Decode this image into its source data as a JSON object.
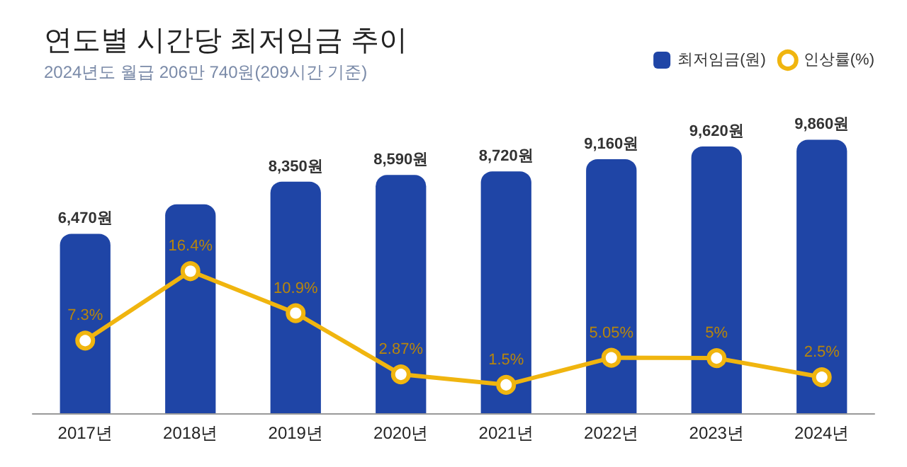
{
  "chart_data": {
    "type": "bar",
    "title": "연도별 시간당 최저임금 추이",
    "subtitle": "2024년도 월급 206만 740원(209시간 기준)",
    "categories": [
      "2017년",
      "2018년",
      "2019년",
      "2020년",
      "2021년",
      "2022년",
      "2023년",
      "2024년"
    ],
    "series": [
      {
        "name": "최저임금(원)",
        "color": "#1f45a6",
        "values": [
          6470,
          7530,
          8350,
          8590,
          8720,
          9160,
          9620,
          9860
        ],
        "value_labels": [
          "6,470원",
          null,
          "8,350원",
          "8,590원",
          "8,720원",
          "9,160원",
          "9,620원",
          "9,860원"
        ]
      },
      {
        "name": "인상률(%)",
        "type": "line",
        "axis": "y2",
        "color": "#f0b50f",
        "values": [
          7.3,
          16.4,
          10.9,
          2.87,
          1.5,
          5.05,
          5,
          2.5
        ],
        "value_labels": [
          "7.3%",
          "16.4%",
          "10.9%",
          "2.87%",
          "1.5%",
          "5.05%",
          "5%",
          "2.5%"
        ]
      }
    ],
    "legend": "top right",
    "marker": "circle"
  }
}
